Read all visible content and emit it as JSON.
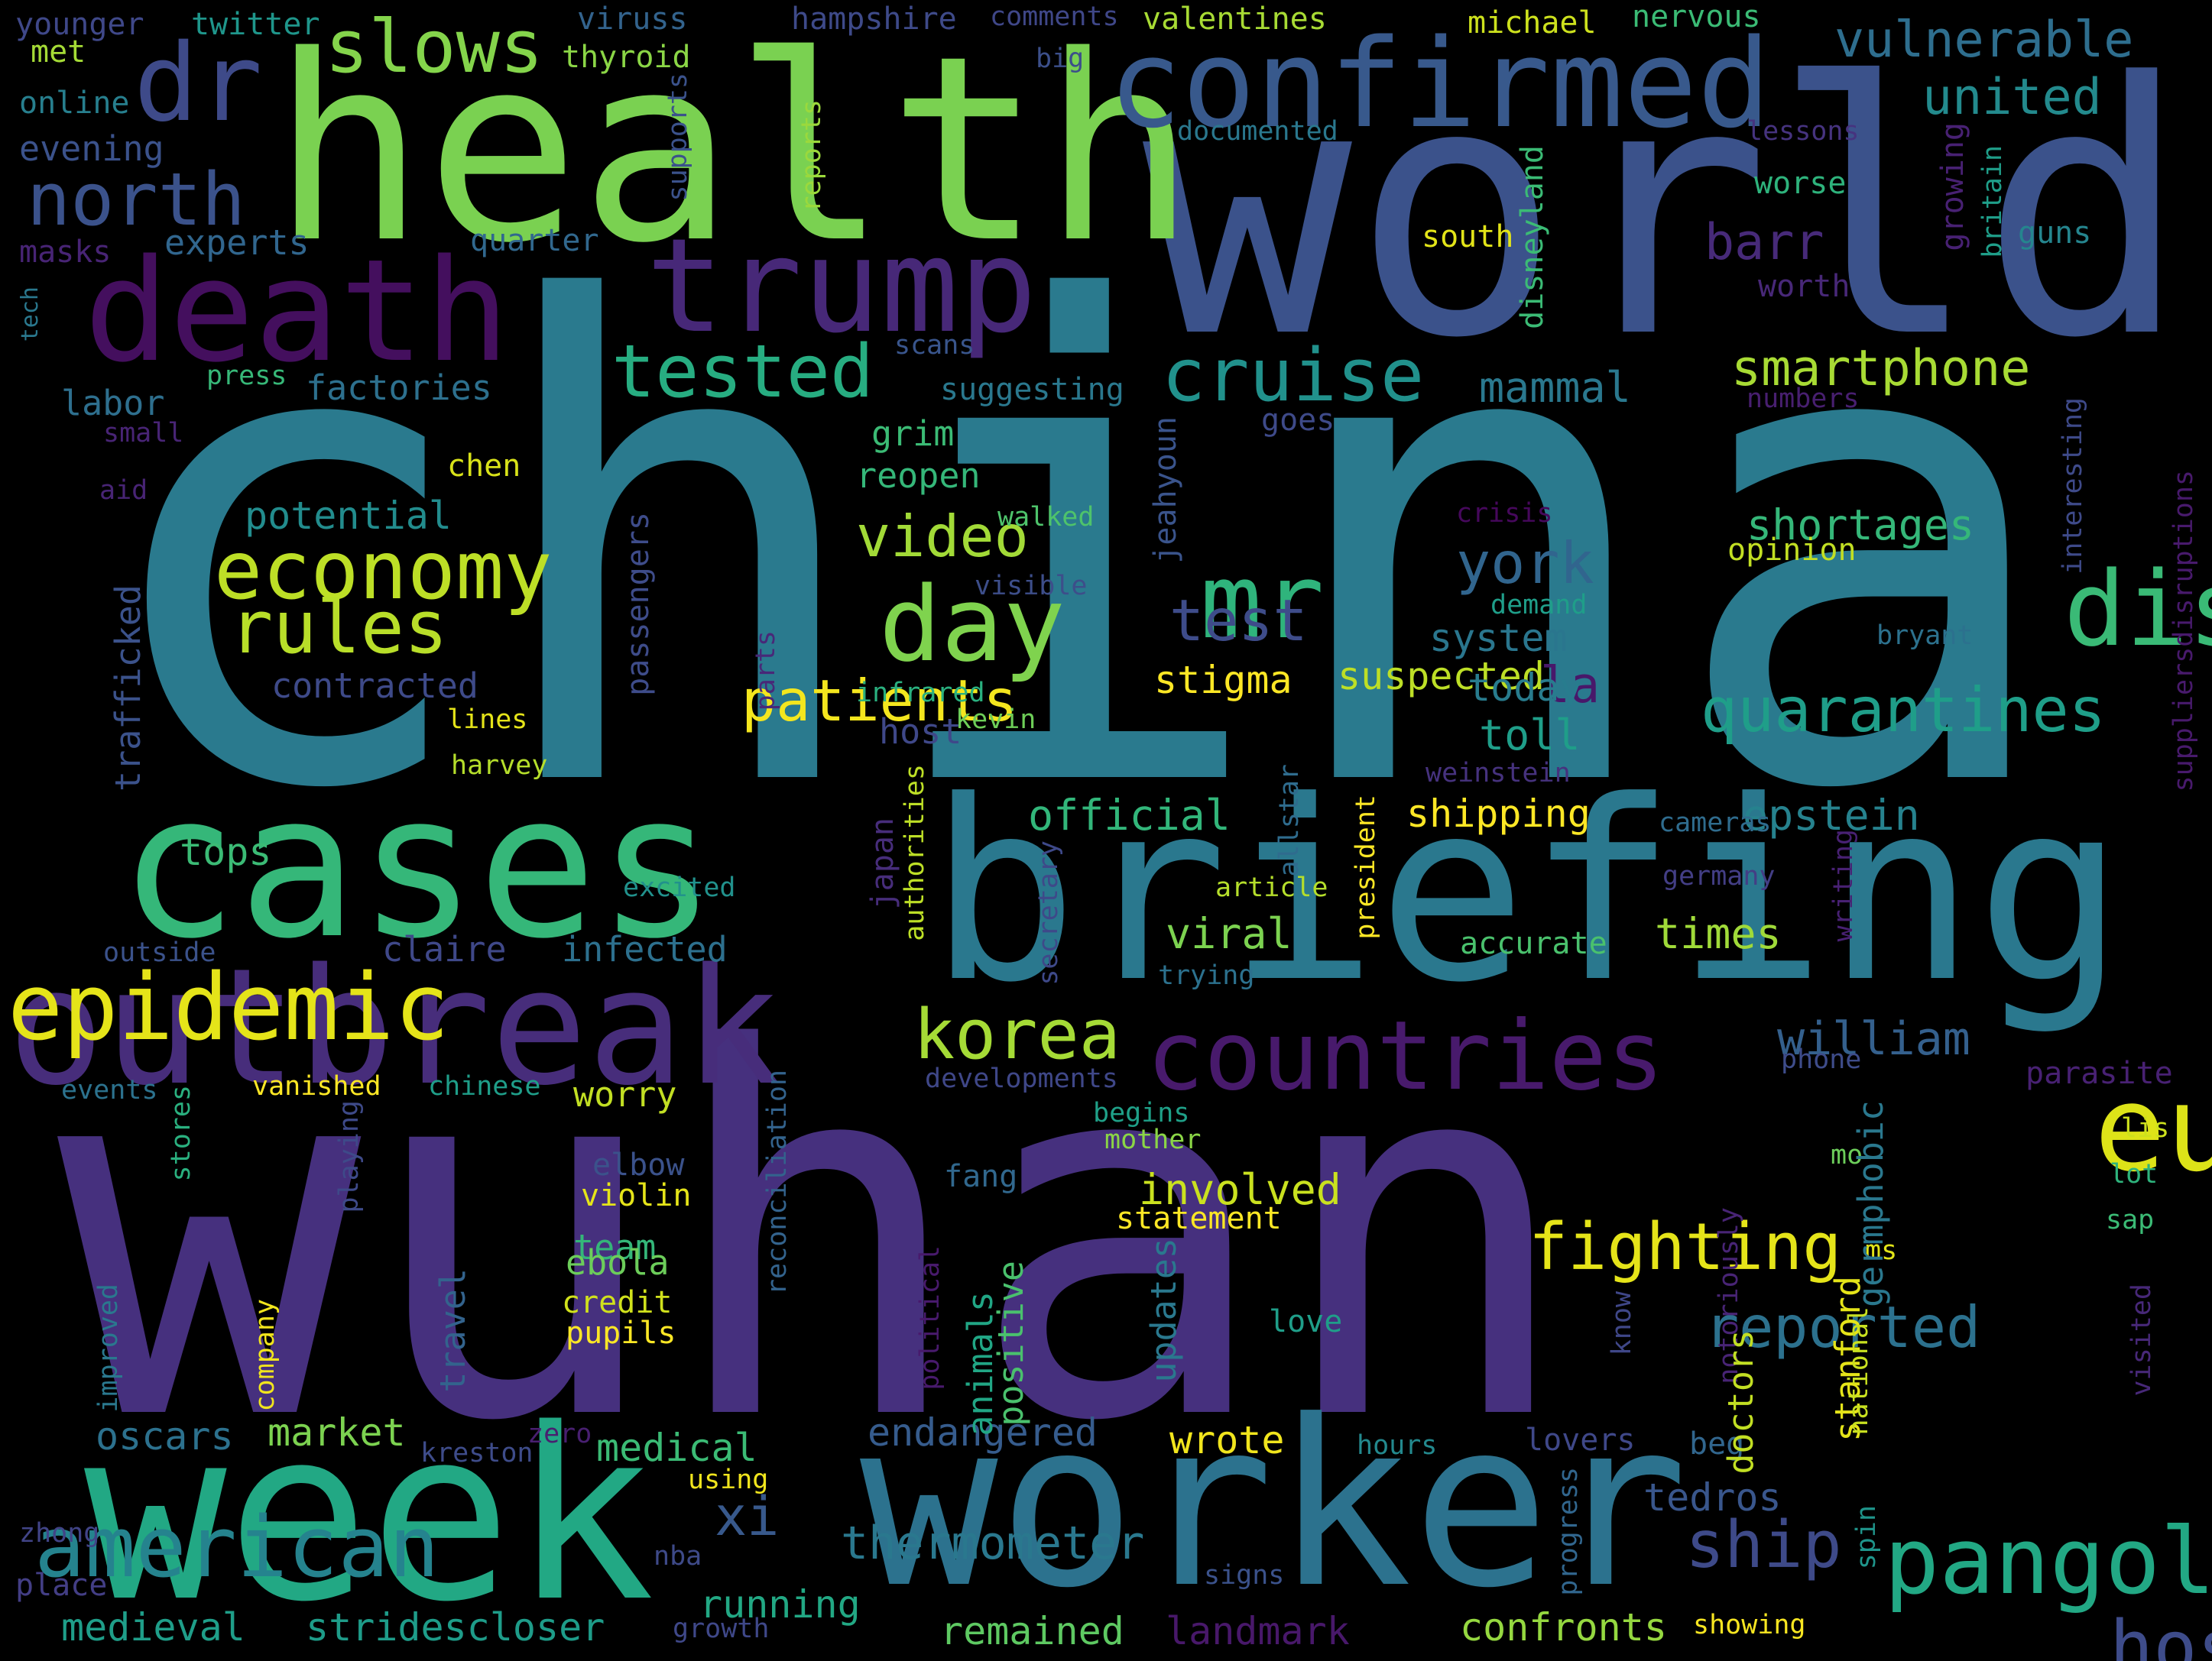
{
  "words": [
    {
      "text": "china",
      "color": "#2a7a8e"
    },
    {
      "text": "wuhan",
      "color": "#46307e"
    },
    {
      "text": "world",
      "color": "#3b528b"
    },
    {
      "text": "health",
      "color": "#7ad151"
    },
    {
      "text": "briefing",
      "color": "#2a788e"
    },
    {
      "text": "week",
      "color": "#22a884"
    },
    {
      "text": "worker",
      "color": "#2c728e"
    },
    {
      "text": "cases",
      "color": "#35b779"
    },
    {
      "text": "outbreak",
      "color": "#472d7b"
    },
    {
      "text": "confirmed",
      "color": "#38598c"
    },
    {
      "text": "death",
      "color": "#440f5e"
    },
    {
      "text": "trump",
      "color": "#472878"
    },
    {
      "text": "europe",
      "color": "#dde318"
    },
    {
      "text": "epidemic",
      "color": "#e5e419"
    },
    {
      "text": "disease",
      "color": "#3aba76"
    },
    {
      "text": "countries",
      "color": "#481a6c"
    },
    {
      "text": "dr",
      "color": "#3e4a89"
    },
    {
      "text": "mr",
      "color": "#2fb47c"
    },
    {
      "text": "day",
      "color": "#7fd34e"
    },
    {
      "text": "pangolins",
      "color": "#22a884"
    },
    {
      "text": "american",
      "color": "#25838e"
    },
    {
      "text": "hospital",
      "color": "#3e4c8a"
    },
    {
      "text": "economy",
      "color": "#bddf26"
    },
    {
      "text": "slows",
      "color": "#84d44b"
    },
    {
      "text": "north",
      "color": "#3b528b"
    },
    {
      "text": "cruise",
      "color": "#21918c"
    },
    {
      "text": "tested",
      "color": "#27ad81"
    },
    {
      "text": "korea",
      "color": "#a5db36"
    },
    {
      "text": "fighting",
      "color": "#e5e419"
    },
    {
      "text": "quarantines",
      "color": "#1f9e89"
    },
    {
      "text": "rules",
      "color": "#b8de29"
    },
    {
      "text": "vulnerable",
      "color": "#2e6e8e"
    },
    {
      "text": "united",
      "color": "#238a8d"
    },
    {
      "text": "smartphone",
      "color": "#a8db34"
    },
    {
      "text": "ship",
      "color": "#3e4a89"
    },
    {
      "text": "william",
      "color": "#34608d"
    },
    {
      "text": "video",
      "color": "#a2da37"
    },
    {
      "text": "patients",
      "color": "#f4e61e"
    },
    {
      "text": "reported",
      "color": "#2c718e"
    },
    {
      "text": "thermometer",
      "color": "#2a788e"
    },
    {
      "text": "xi",
      "color": "#38598c"
    },
    {
      "text": "test",
      "color": "#3e4c8a"
    },
    {
      "text": "york",
      "color": "#31658e"
    },
    {
      "text": "barr",
      "color": "#472a79"
    },
    {
      "text": "shortages",
      "color": "#35b779"
    },
    {
      "text": "mammal",
      "color": "#2a788e"
    },
    {
      "text": "epstein",
      "color": "#26828e"
    },
    {
      "text": "la",
      "color": "#48186a"
    },
    {
      "text": "toll",
      "color": "#1f9e89"
    },
    {
      "text": "shipping",
      "color": "#fde725"
    },
    {
      "text": "stigma",
      "color": "#fde725"
    },
    {
      "text": "suspected",
      "color": "#bddf26"
    },
    {
      "text": "today",
      "color": "#287c8e"
    },
    {
      "text": "system",
      "color": "#2a768e"
    },
    {
      "text": "official",
      "color": "#32b67a"
    },
    {
      "text": "viral",
      "color": "#7cd250"
    },
    {
      "text": "times",
      "color": "#a0da39"
    },
    {
      "text": "involved",
      "color": "#cae11f"
    },
    {
      "text": "medical",
      "color": "#3bbb75"
    },
    {
      "text": "market",
      "color": "#7cd250"
    },
    {
      "text": "oscars",
      "color": "#2c718e"
    },
    {
      "text": "running",
      "color": "#22a884"
    },
    {
      "text": "remained",
      "color": "#5ec962"
    },
    {
      "text": "landmark",
      "color": "#48186a"
    },
    {
      "text": "confronts",
      "color": "#95d840"
    },
    {
      "text": "medieval",
      "color": "#1f9e89"
    },
    {
      "text": "stridescloser",
      "color": "#1e9c89"
    },
    {
      "text": "endangered",
      "color": "#365c8d"
    },
    {
      "text": "wrote",
      "color": "#f1e51d"
    },
    {
      "text": "tedros",
      "color": "#39568c"
    },
    {
      "text": "tops",
      "color": "#3bbb75"
    },
    {
      "text": "infected",
      "color": "#2d708e"
    },
    {
      "text": "claire",
      "color": "#3f4889"
    },
    {
      "text": "potential",
      "color": "#228c8d"
    },
    {
      "text": "contracted",
      "color": "#3e4a89"
    },
    {
      "text": "factories",
      "color": "#2d708e"
    },
    {
      "text": "labor",
      "color": "#2e6f8e"
    },
    {
      "text": "experts",
      "color": "#31668e"
    },
    {
      "text": "evening",
      "color": "#3b528b"
    },
    {
      "text": "masks",
      "color": "#482475"
    },
    {
      "text": "online",
      "color": "#277f8e"
    },
    {
      "text": "thyroid",
      "color": "#8bd646"
    },
    {
      "text": "viruss",
      "color": "#33638d"
    },
    {
      "text": "hampshire",
      "color": "#3e4a89"
    },
    {
      "text": "comments",
      "color": "#3f4788"
    },
    {
      "text": "valentines",
      "color": "#a8db34"
    },
    {
      "text": "michael",
      "color": "#cde11d"
    },
    {
      "text": "nervous",
      "color": "#3bbb75"
    },
    {
      "text": "younger",
      "color": "#3f4889"
    },
    {
      "text": "twitter",
      "color": "#1f968b"
    },
    {
      "text": "met",
      "color": "#a5db36"
    },
    {
      "text": "quarter",
      "color": "#31688e"
    },
    {
      "text": "documented",
      "color": "#2a788e"
    },
    {
      "text": "big",
      "color": "#3c4f8a"
    },
    {
      "text": "lessons",
      "color": "#46337f"
    },
    {
      "text": "worse",
      "color": "#2eb37c"
    },
    {
      "text": "south",
      "color": "#e2e418"
    },
    {
      "text": "worth",
      "color": "#482878"
    },
    {
      "text": "guns",
      "color": "#25858e"
    },
    {
      "text": "scans",
      "color": "#39558c"
    },
    {
      "text": "suggesting",
      "color": "#2a788e"
    },
    {
      "text": "press",
      "color": "#37b878"
    },
    {
      "text": "small",
      "color": "#482475"
    },
    {
      "text": "aid",
      "color": "#482475"
    },
    {
      "text": "chen",
      "color": "#d8e219"
    },
    {
      "text": "grim",
      "color": "#3bbb75"
    },
    {
      "text": "reopen",
      "color": "#35b779"
    },
    {
      "text": "walked",
      "color": "#4ec36b"
    },
    {
      "text": "visible",
      "color": "#3d4e8a"
    },
    {
      "text": "goes",
      "color": "#3e4a89"
    },
    {
      "text": "numbers",
      "color": "#481f70"
    },
    {
      "text": "crisis",
      "color": "#46085c"
    },
    {
      "text": "opinion",
      "color": "#c2df23"
    },
    {
      "text": "demand",
      "color": "#1f9e89"
    },
    {
      "text": "bryant",
      "color": "#2c718e"
    },
    {
      "text": "infrared",
      "color": "#2ab07f"
    },
    {
      "text": "kevin",
      "color": "#6ece58"
    },
    {
      "text": "host",
      "color": "#3f4889"
    },
    {
      "text": "lines",
      "color": "#e5e419"
    },
    {
      "text": "harvey",
      "color": "#b5de2b"
    },
    {
      "text": "weinstein",
      "color": "#46327e"
    },
    {
      "text": "cameras",
      "color": "#2f6c8e"
    },
    {
      "text": "germany",
      "color": "#433e85"
    },
    {
      "text": "excited",
      "color": "#21918c"
    },
    {
      "text": "article",
      "color": "#b5de2b"
    },
    {
      "text": "accurate",
      "color": "#4ac16d"
    },
    {
      "text": "outside",
      "color": "#3b528b"
    },
    {
      "text": "trying",
      "color": "#2c718e"
    },
    {
      "text": "phone",
      "color": "#3e4c8a"
    },
    {
      "text": "developments",
      "color": "#3f4788"
    },
    {
      "text": "begins",
      "color": "#1fa088"
    },
    {
      "text": "mother",
      "color": "#8bd646"
    },
    {
      "text": "parasite",
      "color": "#482173"
    },
    {
      "text": "events",
      "color": "#2c728e"
    },
    {
      "text": "vanished",
      "color": "#fde725"
    },
    {
      "text": "chinese",
      "color": "#1f9e89"
    },
    {
      "text": "worry",
      "color": "#c2df23"
    },
    {
      "text": "elbow",
      "color": "#3b528b"
    },
    {
      "text": "violin",
      "color": "#e5e419"
    },
    {
      "text": "team",
      "color": "#34b679"
    },
    {
      "text": "ebola",
      "color": "#6ccd5a"
    },
    {
      "text": "credit",
      "color": "#d0e11c"
    },
    {
      "text": "pupils",
      "color": "#fde725"
    },
    {
      "text": "fang",
      "color": "#31688e"
    },
    {
      "text": "statement",
      "color": "#fde725"
    },
    {
      "text": "love",
      "color": "#1f9e89"
    },
    {
      "text": "hours",
      "color": "#23898e"
    },
    {
      "text": "lovers",
      "color": "#3f4889"
    },
    {
      "text": "beg",
      "color": "#31668e"
    },
    {
      "text": "signs",
      "color": "#3b528b"
    },
    {
      "text": "showing",
      "color": "#f8e621"
    },
    {
      "text": "growth",
      "color": "#3f4889"
    },
    {
      "text": "using",
      "color": "#f1e51d"
    },
    {
      "text": "nba",
      "color": "#3e4a89"
    },
    {
      "text": "kreston",
      "color": "#3e4c8a"
    },
    {
      "text": "zero",
      "color": "#481f70"
    },
    {
      "text": "place",
      "color": "#433e85"
    },
    {
      "text": "zhong",
      "color": "#414487"
    },
    {
      "text": "mo",
      "color": "#6ccd5a"
    },
    {
      "text": "lis",
      "color": "#cde11d"
    },
    {
      "text": "lot",
      "color": "#2eb37c"
    },
    {
      "text": "sap",
      "color": "#3bbb75"
    },
    {
      "text": "ms",
      "color": "#e2e418"
    },
    {
      "text": "tech",
      "color": "#2a788e",
      "v": true
    },
    {
      "text": "supports",
      "color": "#3b528b",
      "v": true
    },
    {
      "text": "reports",
      "color": "#9bd93c",
      "v": true
    },
    {
      "text": "disneyland",
      "color": "#3bbb75",
      "v": true
    },
    {
      "text": "growing",
      "color": "#482173",
      "v": true
    },
    {
      "text": "britain",
      "color": "#1f9e89",
      "v": true
    },
    {
      "text": "interesting",
      "color": "#3e4a89",
      "v": true
    },
    {
      "text": "suppliersdisruptions",
      "color": "#481a6c",
      "v": true
    },
    {
      "text": "jeahyoun",
      "color": "#3a548c",
      "v": true
    },
    {
      "text": "passengers",
      "color": "#3e4c8a",
      "v": true
    },
    {
      "text": "trafficked",
      "color": "#3b528b",
      "v": true
    },
    {
      "text": "parts",
      "color": "#482878",
      "v": true
    },
    {
      "text": "authorities",
      "color": "#bddf26",
      "v": true
    },
    {
      "text": "japan",
      "color": "#472d7b",
      "v": true
    },
    {
      "text": "secretary",
      "color": "#3e4989",
      "v": true
    },
    {
      "text": "allstar",
      "color": "#2f6c8e",
      "v": true
    },
    {
      "text": "president",
      "color": "#fde725",
      "v": true
    },
    {
      "text": "writing",
      "color": "#482173",
      "v": true
    },
    {
      "text": "stores",
      "color": "#2ab07f",
      "v": true
    },
    {
      "text": "playing",
      "color": "#3e4a89",
      "v": true
    },
    {
      "text": "improved",
      "color": "#2a788e",
      "v": true
    },
    {
      "text": "company",
      "color": "#f1e51d",
      "v": true
    },
    {
      "text": "reconciliation",
      "color": "#33638d",
      "v": true
    },
    {
      "text": "travel",
      "color": "#33638d",
      "v": true
    },
    {
      "text": "animals",
      "color": "#21a685",
      "v": true
    },
    {
      "text": "positive",
      "color": "#4ac16d",
      "v": true
    },
    {
      "text": "updates",
      "color": "#2a788e",
      "v": true
    },
    {
      "text": "political",
      "color": "#481a6c",
      "v": true
    },
    {
      "text": "know",
      "color": "#3f4788",
      "v": true
    },
    {
      "text": "notoriously",
      "color": "#482475",
      "v": true
    },
    {
      "text": "progress",
      "color": "#31668e",
      "v": true
    },
    {
      "text": "spin",
      "color": "#1f958b",
      "v": true
    },
    {
      "text": "doctors",
      "color": "#c2df23",
      "v": true
    },
    {
      "text": "germphobic",
      "color": "#2a788e",
      "v": true
    },
    {
      "text": "stanford",
      "color": "#e5e419",
      "v": true
    },
    {
      "text": "national",
      "color": "#c8e020",
      "v": true
    },
    {
      "text": "visited",
      "color": "#472878",
      "v": true
    }
  ]
}
